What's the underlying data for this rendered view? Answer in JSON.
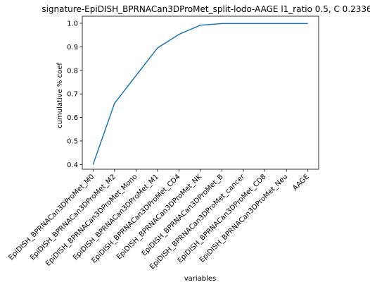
{
  "chart_data": {
    "type": "line",
    "title": "signature-EpiDISH_BPRNACan3DProMet_split-lodo-AAGE l1_ratio 0.5, C 0.2336",
    "xlabel": "variables",
    "ylabel": "cumulative % coef",
    "categories": [
      "EpiDISH_BPRNACan3DProMet_M0",
      "EpiDISH_BPRNACan3DProMet_M2",
      "EpiDISH_BPRNACan3DProMet_Mono",
      "EpiDISH_BPRNACan3DProMet_M1",
      "EpiDISH_BPRNACan3DProMet_CD4",
      "EpiDISH_BPRNACan3DProMet_NK",
      "EpiDISH_BPRNACan3DProMet_B",
      "EpiDISH_BPRNACan3DProMet_cancer",
      "EpiDISH_BPRNACan3DProMet_CD8",
      "EpiDISH_BPRNACan3DProMet_Neu",
      "AAGE"
    ],
    "values": [
      0.4,
      0.66,
      0.778,
      0.895,
      0.953,
      0.992,
      0.999,
      0.999,
      0.999,
      0.999,
      0.999
    ],
    "yticks": [
      "0.4",
      "0.5",
      "0.6",
      "0.7",
      "0.8",
      "0.9",
      "1.0"
    ],
    "ylim": [
      0.38,
      1.03
    ],
    "grid": false,
    "line_color": "#1f77b4"
  }
}
